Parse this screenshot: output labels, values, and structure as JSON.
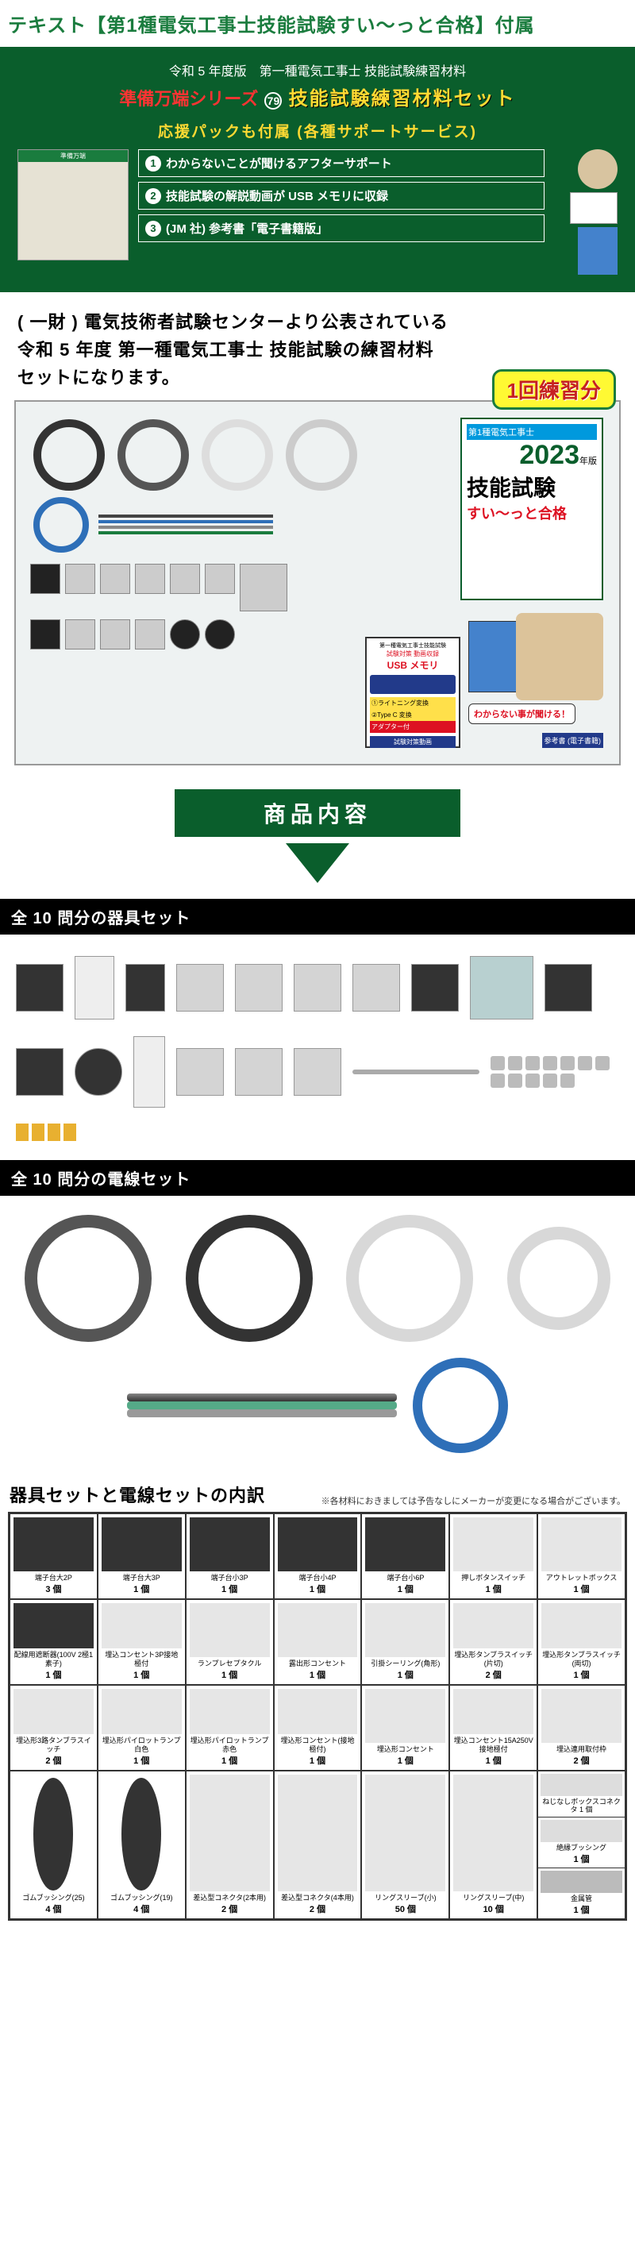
{
  "header": {
    "title": "テキスト【第1種電気工事士技能試験すい～っと合格】付属"
  },
  "greenbox": {
    "line1": "令和 5 年度版　第一種電気工事士 技能試験練習材料",
    "junbi": "準備万端シリーズ",
    "num": "79",
    "yellow": "技能試験練習材料セット",
    "support_header": "応援パックも付属 (各種サポートサービス)",
    "items": [
      "わからないことが聞けるアフターサポート",
      "技能試験の解説動画が USB メモリに収録",
      "(JM 社) 参考書「電子書籍版」"
    ]
  },
  "desc": {
    "l1": "( 一財 ) 電気技術者試験センターより公表されている",
    "l2": "令和 5 年度 第一種電気工事士 技能試験の練習材料",
    "l3": "セットになります。",
    "badge": "1回練習分"
  },
  "book": {
    "hdr": "第1種電気工事士",
    "year": "2023",
    "yearsuffix": "年版",
    "skill": "技能試験",
    "pass": "すい～っと合格"
  },
  "usbcard": {
    "sub": "第一種電気工事士技能試験",
    "sub2": "試験対策 動画収録",
    "title": "USB メモリ",
    "a1": "①ライトニング変換",
    "a2": "②Type C 変換",
    "a3": "アダプター付",
    "label": "試験対策動画",
    "ref": "参考書 (電子書籍)"
  },
  "speech": "わからない事が聞ける！",
  "section_banner": "商品内容",
  "black1": "全 10 問分の器具セット",
  "black2": "全 10 問分の電線セット",
  "table": {
    "title": "器具セットと電線セットの内訳",
    "note": "※各材料におきましては予告なしにメーカーが変更になる場合がございます。",
    "rows": [
      [
        {
          "name": "端子台大2P",
          "qty": "3 個"
        },
        {
          "name": "端子台大3P",
          "qty": "1 個"
        },
        {
          "name": "端子台小3P",
          "qty": "1 個"
        },
        {
          "name": "端子台小4P",
          "qty": "1 個"
        },
        {
          "name": "端子台小6P",
          "qty": "1 個"
        },
        {
          "name": "押しボタンスイッチ",
          "qty": "1 個"
        },
        {
          "name": "アウトレットボックス",
          "qty": "1 個"
        }
      ],
      [
        {
          "name": "配線用遮断器(100V 2極1素子)",
          "qty": "1 個"
        },
        {
          "name": "埋込コンセント3P接地極付",
          "qty": "1 個"
        },
        {
          "name": "ランプレセプタクル",
          "qty": "1 個"
        },
        {
          "name": "露出形コンセント",
          "qty": "1 個"
        },
        {
          "name": "引掛シーリング(角形)",
          "qty": "1 個"
        },
        {
          "name": "埋込形タンブラスイッチ(片切)",
          "qty": "2 個"
        },
        {
          "name": "埋込形タンブラスイッチ(両切)",
          "qty": "1 個"
        }
      ],
      [
        {
          "name": "埋込形3路タンブラスイッチ",
          "qty": "2 個"
        },
        {
          "name": "埋込形パイロットランプ白色",
          "qty": "1 個"
        },
        {
          "name": "埋込形パイロットランプ赤色",
          "qty": "1 個"
        },
        {
          "name": "埋込形コンセント(接地極付)",
          "qty": "1 個"
        },
        {
          "name": "埋込形コンセント",
          "qty": "1 個"
        },
        {
          "name": "埋込コンセント15A250V 接地極付",
          "qty": "1 個"
        },
        {
          "name": "埋込連用取付枠",
          "qty": "2 個"
        }
      ],
      [
        {
          "name": "ゴムブッシング(25)",
          "qty": "4 個"
        },
        {
          "name": "ゴムブッシング(19)",
          "qty": "4 個"
        },
        {
          "name": "差込型コネクタ(2本用)",
          "qty": "2 個"
        },
        {
          "name": "差込型コネクタ(4本用)",
          "qty": "2 個"
        },
        {
          "name": "リングスリーブ(小)",
          "qty": "50 個"
        },
        {
          "name": "リングスリーブ(中)",
          "qty": "10 個"
        }
      ]
    ],
    "lastcol": {
      "top": {
        "name": "ねじなしボックスコネクタ 1 個"
      },
      "mid": {
        "name": "絶縁ブッシング",
        "qty": "1 個"
      },
      "bot": {
        "name": "金属管",
        "qty": "1 個"
      }
    }
  },
  "colors": {
    "green": "#0a5e2c",
    "brightgreen": "#1a7c3e",
    "yellow": "#ffda33",
    "red": "#d12020"
  }
}
